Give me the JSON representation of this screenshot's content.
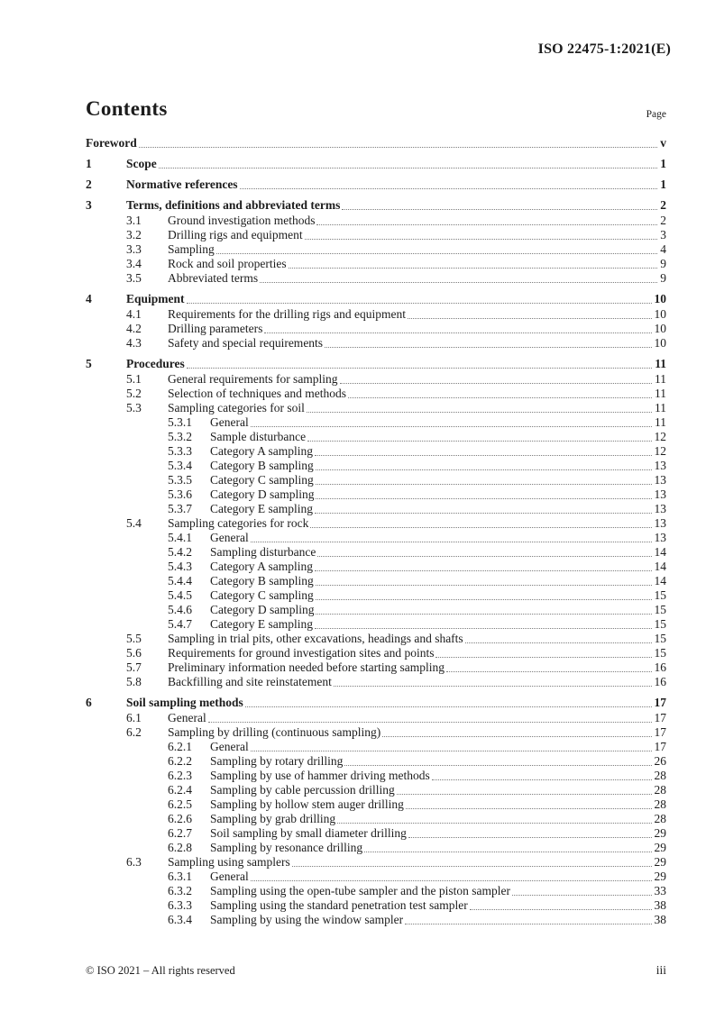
{
  "header": {
    "document_reference": "ISO 22475-1:2021(E)"
  },
  "contents": {
    "title": "Contents",
    "page_label": "Page"
  },
  "toc": {
    "entries": [
      {
        "level": 1,
        "num": "",
        "title": "Foreword",
        "page": "v"
      },
      {
        "level": 1,
        "num": "1",
        "title": "Scope",
        "page": "1"
      },
      {
        "level": 1,
        "num": "2",
        "title": "Normative references",
        "page": "1"
      },
      {
        "level": 1,
        "num": "3",
        "title": "Terms, definitions and abbreviated terms",
        "page": "2"
      },
      {
        "level": 2,
        "num": "3.1",
        "title": "Ground investigation methods",
        "page": "2"
      },
      {
        "level": 2,
        "num": "3.2",
        "title": "Drilling rigs and equipment",
        "page": "3"
      },
      {
        "level": 2,
        "num": "3.3",
        "title": "Sampling",
        "page": "4"
      },
      {
        "level": 2,
        "num": "3.4",
        "title": "Rock and soil properties",
        "page": "9"
      },
      {
        "level": 2,
        "num": "3.5",
        "title": "Abbreviated terms",
        "page": "9"
      },
      {
        "level": 1,
        "num": "4",
        "title": "Equipment",
        "page": "10"
      },
      {
        "level": 2,
        "num": "4.1",
        "title": "Requirements for the drilling rigs and equipment",
        "page": "10"
      },
      {
        "level": 2,
        "num": "4.2",
        "title": "Drilling parameters",
        "page": "10"
      },
      {
        "level": 2,
        "num": "4.3",
        "title": "Safety and special requirements",
        "page": "10"
      },
      {
        "level": 1,
        "num": "5",
        "title": "Procedures",
        "page": "11"
      },
      {
        "level": 2,
        "num": "5.1",
        "title": "General requirements for sampling",
        "page": "11"
      },
      {
        "level": 2,
        "num": "5.2",
        "title": "Selection of techniques and methods",
        "page": "11"
      },
      {
        "level": 2,
        "num": "5.3",
        "title": "Sampling categories for soil",
        "page": "11"
      },
      {
        "level": 3,
        "num": "5.3.1",
        "title": "General",
        "page": "11"
      },
      {
        "level": 3,
        "num": "5.3.2",
        "title": "Sample disturbance",
        "page": "12"
      },
      {
        "level": 3,
        "num": "5.3.3",
        "title": "Category A sampling",
        "page": "12"
      },
      {
        "level": 3,
        "num": "5.3.4",
        "title": "Category B sampling",
        "page": "13"
      },
      {
        "level": 3,
        "num": "5.3.5",
        "title": "Category C sampling",
        "page": "13"
      },
      {
        "level": 3,
        "num": "5.3.6",
        "title": "Category D sampling",
        "page": "13"
      },
      {
        "level": 3,
        "num": "5.3.7",
        "title": "Category E sampling",
        "page": "13"
      },
      {
        "level": 2,
        "num": "5.4",
        "title": "Sampling categories for rock",
        "page": "13"
      },
      {
        "level": 3,
        "num": "5.4.1",
        "title": "General",
        "page": "13"
      },
      {
        "level": 3,
        "num": "5.4.2",
        "title": "Sampling disturbance",
        "page": "14"
      },
      {
        "level": 3,
        "num": "5.4.3",
        "title": "Category A sampling",
        "page": "14"
      },
      {
        "level": 3,
        "num": "5.4.4",
        "title": "Category B sampling",
        "page": "14"
      },
      {
        "level": 3,
        "num": "5.4.5",
        "title": "Category C sampling",
        "page": "15"
      },
      {
        "level": 3,
        "num": "5.4.6",
        "title": "Category D sampling",
        "page": "15"
      },
      {
        "level": 3,
        "num": "5.4.7",
        "title": "Category E sampling",
        "page": "15"
      },
      {
        "level": 2,
        "num": "5.5",
        "title": "Sampling in trial pits, other excavations, headings and shafts",
        "page": "15"
      },
      {
        "level": 2,
        "num": "5.6",
        "title": "Requirements for ground investigation sites and points",
        "page": "15"
      },
      {
        "level": 2,
        "num": "5.7",
        "title": "Preliminary information needed before starting sampling",
        "page": "16"
      },
      {
        "level": 2,
        "num": "5.8",
        "title": "Backfilling and site reinstatement",
        "page": "16"
      },
      {
        "level": 1,
        "num": "6",
        "title": "Soil sampling methods",
        "page": "17"
      },
      {
        "level": 2,
        "num": "6.1",
        "title": "General",
        "page": "17"
      },
      {
        "level": 2,
        "num": "6.2",
        "title": "Sampling by drilling (continuous sampling)",
        "page": "17"
      },
      {
        "level": 3,
        "num": "6.2.1",
        "title": "General",
        "page": "17"
      },
      {
        "level": 3,
        "num": "6.2.2",
        "title": "Sampling by rotary drilling",
        "page": "26"
      },
      {
        "level": 3,
        "num": "6.2.3",
        "title": "Sampling by use of hammer driving methods",
        "page": "28"
      },
      {
        "level": 3,
        "num": "6.2.4",
        "title": "Sampling by cable percussion drilling",
        "page": "28"
      },
      {
        "level": 3,
        "num": "6.2.5",
        "title": "Sampling by hollow stem auger drilling",
        "page": "28"
      },
      {
        "level": 3,
        "num": "6.2.6",
        "title": "Sampling by grab drilling",
        "page": "28"
      },
      {
        "level": 3,
        "num": "6.2.7",
        "title": "Soil sampling by small diameter drilling",
        "page": "29"
      },
      {
        "level": 3,
        "num": "6.2.8",
        "title": "Sampling by resonance drilling",
        "page": "29"
      },
      {
        "level": 2,
        "num": "6.3",
        "title": "Sampling using samplers",
        "page": "29"
      },
      {
        "level": 3,
        "num": "6.3.1",
        "title": "General",
        "page": "29"
      },
      {
        "level": 3,
        "num": "6.3.2",
        "title": "Sampling using the open-tube sampler and the piston sampler",
        "page": "33"
      },
      {
        "level": 3,
        "num": "6.3.3",
        "title": "Sampling using the standard penetration test sampler",
        "page": "38"
      },
      {
        "level": 3,
        "num": "6.3.4",
        "title": "Sampling by using the window sampler",
        "page": "38"
      }
    ]
  },
  "footer": {
    "copyright": "© ISO 2021 – All rights reserved",
    "page_number": "iii"
  }
}
